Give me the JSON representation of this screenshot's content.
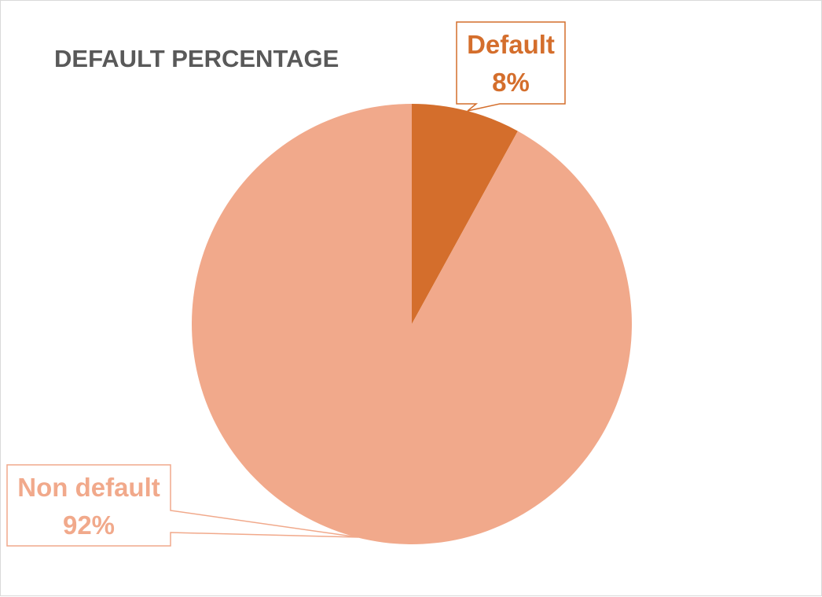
{
  "chart_data": {
    "type": "pie",
    "title": "DEFAULT PERCENTAGE",
    "slices": [
      {
        "name": "Default",
        "value": 8,
        "label": "8%",
        "color": "#D46E2C"
      },
      {
        "name": "Non default",
        "value": 92,
        "label": "92%",
        "color": "#F1A98B"
      }
    ],
    "legend": "none",
    "data_labels": "callouts"
  }
}
